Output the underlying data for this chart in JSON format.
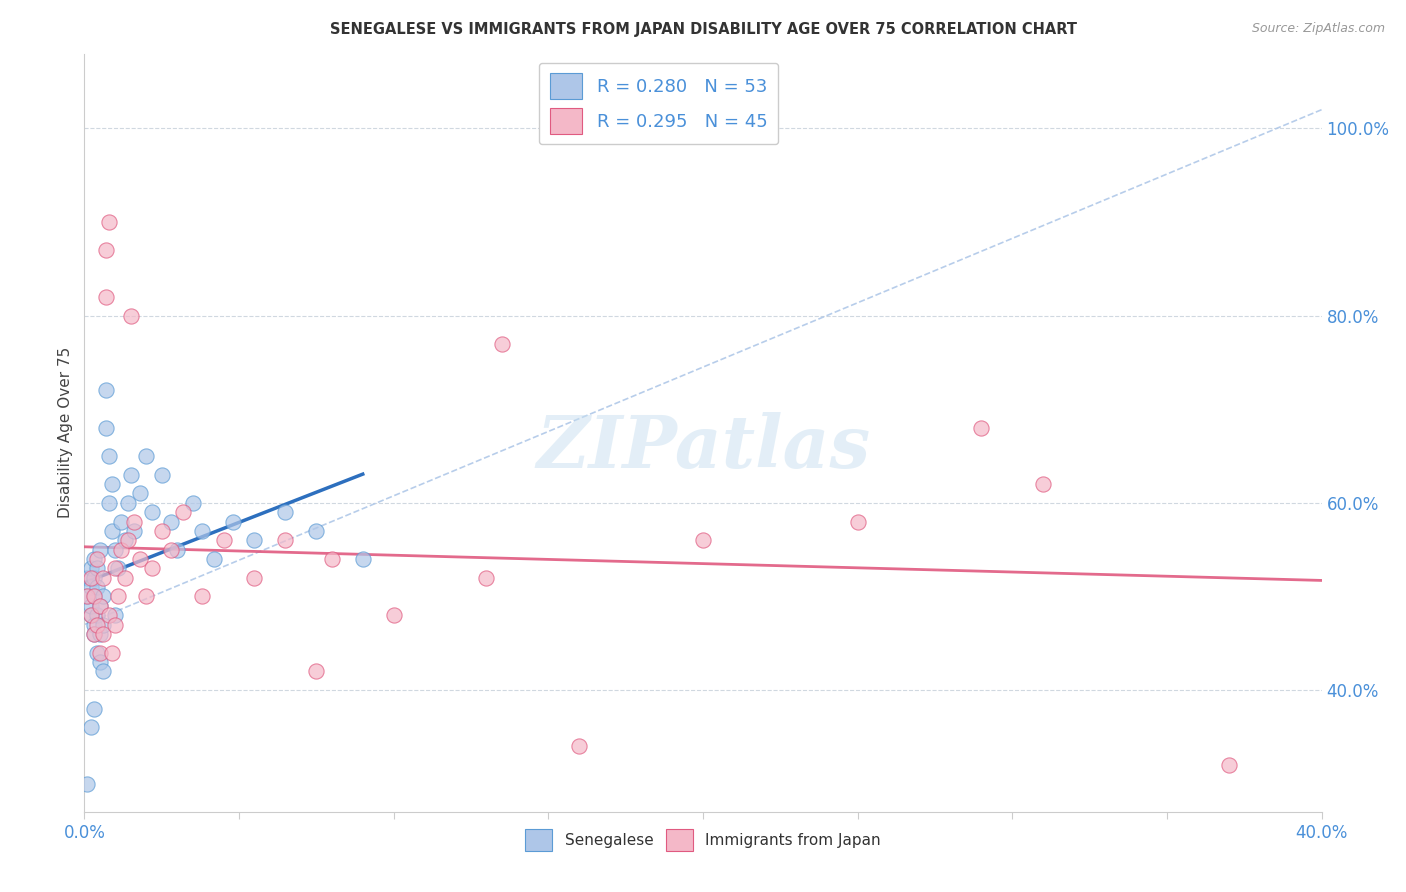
{
  "title": "SENEGALESE VS IMMIGRANTS FROM JAPAN DISABILITY AGE OVER 75 CORRELATION CHART",
  "source": "Source: ZipAtlas.com",
  "ylabel": "Disability Age Over 75",
  "ylabel_right_ticks": [
    "40.0%",
    "60.0%",
    "80.0%",
    "100.0%"
  ],
  "ylabel_right_vals": [
    0.4,
    0.6,
    0.8,
    1.0
  ],
  "xmin": 0.0,
  "xmax": 0.4,
  "ymin": 0.27,
  "ymax": 1.08,
  "senegalese_color": "#aec6e8",
  "senegalese_edge": "#5b9bd5",
  "japan_color": "#f4b8c8",
  "japan_edge": "#e05a80",
  "trend_blue_color": "#2d6fbe",
  "trend_pink_color": "#e05a80",
  "dashed_line_color": "#b0c8e8",
  "watermark": "ZIPatlas",
  "watermark_color": "#c8dff0",
  "senegalese_x": [
    0.001,
    0.001,
    0.002,
    0.002,
    0.002,
    0.002,
    0.003,
    0.003,
    0.003,
    0.003,
    0.003,
    0.004,
    0.004,
    0.004,
    0.004,
    0.005,
    0.005,
    0.005,
    0.005,
    0.006,
    0.006,
    0.006,
    0.007,
    0.007,
    0.008,
    0.008,
    0.009,
    0.009,
    0.01,
    0.01,
    0.011,
    0.012,
    0.013,
    0.014,
    0.015,
    0.016,
    0.018,
    0.02,
    0.022,
    0.025,
    0.028,
    0.03,
    0.035,
    0.038,
    0.042,
    0.048,
    0.055,
    0.065,
    0.075,
    0.09,
    0.003,
    0.002,
    0.001
  ],
  "senegalese_y": [
    0.5,
    0.52,
    0.48,
    0.51,
    0.53,
    0.49,
    0.47,
    0.5,
    0.52,
    0.54,
    0.46,
    0.48,
    0.51,
    0.44,
    0.53,
    0.46,
    0.49,
    0.43,
    0.55,
    0.47,
    0.5,
    0.42,
    0.68,
    0.72,
    0.65,
    0.6,
    0.62,
    0.57,
    0.55,
    0.48,
    0.53,
    0.58,
    0.56,
    0.6,
    0.63,
    0.57,
    0.61,
    0.65,
    0.59,
    0.63,
    0.58,
    0.55,
    0.6,
    0.57,
    0.54,
    0.58,
    0.56,
    0.59,
    0.57,
    0.54,
    0.38,
    0.36,
    0.3
  ],
  "japan_x": [
    0.001,
    0.002,
    0.002,
    0.003,
    0.003,
    0.004,
    0.004,
    0.005,
    0.005,
    0.006,
    0.006,
    0.007,
    0.007,
    0.008,
    0.008,
    0.009,
    0.01,
    0.01,
    0.011,
    0.012,
    0.013,
    0.014,
    0.015,
    0.016,
    0.018,
    0.02,
    0.022,
    0.025,
    0.028,
    0.032,
    0.038,
    0.045,
    0.055,
    0.065,
    0.08,
    0.1,
    0.13,
    0.16,
    0.2,
    0.25,
    0.31,
    0.37,
    0.135,
    0.075,
    0.29
  ],
  "japan_y": [
    0.5,
    0.48,
    0.52,
    0.46,
    0.5,
    0.47,
    0.54,
    0.44,
    0.49,
    0.46,
    0.52,
    0.82,
    0.87,
    0.9,
    0.48,
    0.44,
    0.53,
    0.47,
    0.5,
    0.55,
    0.52,
    0.56,
    0.8,
    0.58,
    0.54,
    0.5,
    0.53,
    0.57,
    0.55,
    0.59,
    0.5,
    0.56,
    0.52,
    0.56,
    0.54,
    0.48,
    0.52,
    0.34,
    0.56,
    0.58,
    0.62,
    0.32,
    0.77,
    0.42,
    0.68
  ],
  "legend1_text": "R = 0.280   N = 53",
  "legend2_text": "R = 0.295   N = 45"
}
